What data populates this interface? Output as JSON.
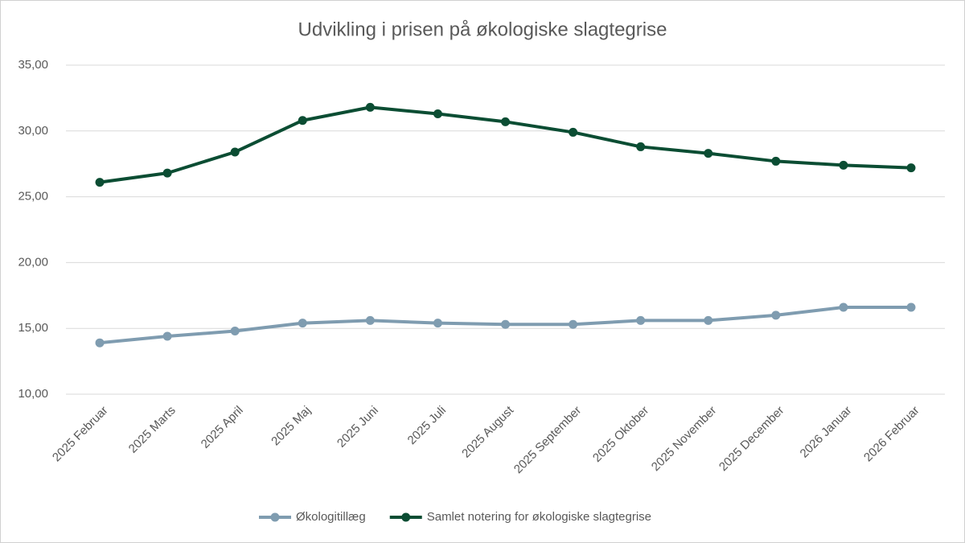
{
  "chart_data": {
    "type": "line",
    "title": "Udvikling i prisen på økologiske slagtegrise",
    "categories": [
      "2025 Februar",
      "2025 Marts",
      "2025 April",
      "2025 Maj",
      "2025 Juni",
      "2025 Juli",
      "2025 August",
      "2025 September",
      "2025 Oktober",
      "2025 November",
      "2025 December",
      "2026 Januar",
      "2026 Februar"
    ],
    "series": [
      {
        "name": "Økologitillæg",
        "color": "#7f9cb0",
        "values": [
          13.9,
          14.4,
          14.8,
          15.4,
          15.6,
          15.4,
          15.3,
          15.3,
          15.6,
          15.6,
          16.0,
          16.6,
          16.6
        ]
      },
      {
        "name": "Samlet notering for økologiske slagtegrise",
        "color": "#0b4d33",
        "values": [
          26.1,
          26.8,
          28.4,
          30.8,
          31.8,
          31.3,
          30.7,
          29.9,
          28.8,
          28.3,
          27.7,
          27.4,
          27.2
        ]
      }
    ],
    "ylim": [
      10,
      35
    ],
    "yticks": [
      {
        "value": 10,
        "label": "10,00"
      },
      {
        "value": 15,
        "label": "15,00"
      },
      {
        "value": 20,
        "label": "20,00"
      },
      {
        "value": 25,
        "label": "25,00"
      },
      {
        "value": 30,
        "label": "30,00"
      },
      {
        "value": 35,
        "label": "35,00"
      }
    ],
    "grid": true,
    "legend": "bottom"
  }
}
